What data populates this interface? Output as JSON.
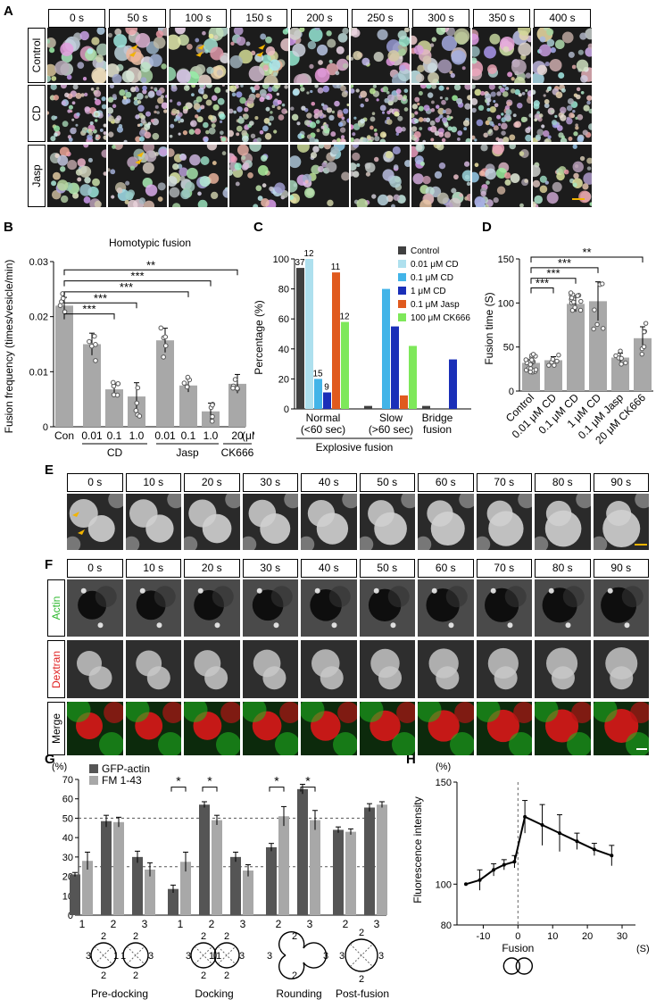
{
  "panels": {
    "A": "A",
    "B": "B",
    "C": "C",
    "D": "D",
    "E": "E",
    "F": "F",
    "G": "G",
    "H": "H"
  },
  "panelA": {
    "times": [
      "0 s",
      "50 s",
      "100 s",
      "150 s",
      "200 s",
      "250 s",
      "300 s",
      "350 s",
      "400 s"
    ],
    "rows": [
      "Control",
      "CD",
      "Jasp"
    ]
  },
  "panelE": {
    "times": [
      "0 s",
      "10 s",
      "20 s",
      "30 s",
      "40 s",
      "50 s",
      "60 s",
      "70 s",
      "80 s",
      "90 s"
    ]
  },
  "panelF": {
    "times": [
      "0 s",
      "10 s",
      "20 s",
      "30 s",
      "40 s",
      "50 s",
      "60 s",
      "70 s",
      "80 s",
      "90 s"
    ],
    "rows": [
      "Actin",
      "Dextran",
      "Merge"
    ],
    "row_colors": [
      "#2db82d",
      "#e02020",
      "#000000"
    ]
  },
  "chart_data": [
    {
      "panel": "B",
      "type": "bar",
      "title": "Homotypic fusion",
      "ylabel": "Fusion frequency (times/vesicle/min)",
      "ylim": [
        0,
        0.03
      ],
      "yticks": [
        "0",
        "0.01",
        "0.02",
        "0.03"
      ],
      "categories": [
        "Con",
        "0.01",
        "0.1",
        "1.0",
        "0.01",
        "0.1",
        "1.0",
        "20"
      ],
      "values": [
        0.022,
        0.015,
        0.0068,
        0.0055,
        0.0157,
        0.0075,
        0.0028,
        0.0078
      ],
      "errors": [
        0.0015,
        0.002,
        0.001,
        0.0025,
        0.0022,
        0.0012,
        0.0015,
        0.0017
      ],
      "groups": [
        "CD",
        "Jasp",
        "CK666"
      ],
      "unit": "(μM)",
      "significance": [
        "**",
        "***",
        "***",
        "***",
        "***"
      ]
    },
    {
      "panel": "C",
      "type": "bar",
      "ylabel": "Percentage (%)",
      "ylim": [
        0,
        100
      ],
      "yticks": [
        "0",
        "20",
        "40",
        "60",
        "80",
        "100"
      ],
      "categories": [
        "Normal\n(<60 sec)",
        "Slow\n(>60 sec)",
        "Bridge\nfusion"
      ],
      "group_label": "Explosive fusion",
      "series": [
        {
          "name": "Control",
          "color": "#404040",
          "values": [
            94,
            2,
            2
          ]
        },
        {
          "name": "0.01 μM CD",
          "color": "#aee0ee",
          "values": [
            100,
            0,
            0
          ]
        },
        {
          "name": "0.1 μM CD",
          "color": "#42b4e8",
          "values": [
            20,
            80,
            0
          ]
        },
        {
          "name": "1 μM CD",
          "color": "#1a2fb8",
          "values": [
            11,
            55,
            33
          ]
        },
        {
          "name": "0.1 μM Jasp",
          "color": "#e05a1e",
          "values": [
            91,
            9,
            0
          ]
        },
        {
          "name": "100 μM CK666",
          "color": "#7ee85a",
          "values": [
            58,
            42,
            0
          ]
        }
      ],
      "n_labels": {
        "Control": "37",
        "0.01 μM CD": "12",
        "0.1 μM CD": "15",
        "1 μM CD": "9",
        "0.1 μM Jasp": "11",
        "100 μM CK666": "12"
      }
    },
    {
      "panel": "D",
      "type": "bar",
      "ylabel": "Fusion time (S)",
      "ylim": [
        0,
        150
      ],
      "yticks": [
        "0",
        "50",
        "100",
        "150"
      ],
      "categories": [
        "Control",
        "0.01 μM CD",
        "0.1 μM CD",
        "1 μM CD",
        "0.1 μM Jasp",
        "20 μM CK666"
      ],
      "values": [
        32,
        35,
        99,
        102,
        38,
        60
      ],
      "errors": [
        3,
        4,
        9,
        22,
        5,
        13
      ],
      "significance": [
        "**",
        "***",
        "***",
        "***"
      ]
    },
    {
      "panel": "G",
      "type": "bar",
      "ylabel": "(%)",
      "ylim": [
        0,
        70
      ],
      "yticks": [
        "0",
        "10",
        "20",
        "30",
        "40",
        "50",
        "60",
        "70"
      ],
      "categories": [
        "1",
        "2",
        "3",
        "1",
        "2",
        "3",
        "2",
        "3",
        "2",
        "3"
      ],
      "stage_labels": [
        "Pre-docking",
        "Docking",
        "Rounding",
        "Post-fusion"
      ],
      "series": [
        {
          "name": "GFP-actin",
          "color": "#555555",
          "values": [
            21,
            48.5,
            30,
            13.5,
            57,
            30,
            35,
            65,
            44,
            55.5
          ],
          "errors": [
            1,
            3,
            3,
            2,
            1.5,
            2.5,
            2,
            2.5,
            1.5,
            2
          ]
        },
        {
          "name": "FM 1-43",
          "color": "#a8a8a8",
          "values": [
            28,
            48,
            23.5,
            27.5,
            49,
            23,
            51,
            49,
            43,
            57
          ],
          "errors": [
            4.5,
            2.5,
            3.5,
            5,
            2.5,
            3,
            5,
            5,
            1.5,
            1.5
          ]
        }
      ],
      "reference_lines": [
        25,
        50
      ],
      "significance": [
        "*",
        "*",
        "*",
        "*"
      ],
      "diagram_numbers": [
        "1",
        "2",
        "3"
      ]
    },
    {
      "panel": "H",
      "type": "line",
      "ylabel": "Fluorescence intensity",
      "yunit": "(%)",
      "xunit": "(S)",
      "xlabel": "Fusion",
      "ylim": [
        80,
        150
      ],
      "yticks": [
        "80",
        "100",
        "150"
      ],
      "xticks": [
        "-10",
        "0",
        "10",
        "20",
        "30"
      ],
      "x": [
        -15,
        -11,
        -7,
        -4,
        -1,
        2,
        7,
        12,
        17,
        22,
        27
      ],
      "y": [
        100,
        102,
        107,
        109.5,
        111,
        133,
        129,
        125,
        121,
        117,
        114
      ],
      "errors": [
        0,
        5,
        3,
        2.5,
        3,
        8,
        10,
        9,
        4,
        3,
        5
      ]
    }
  ]
}
